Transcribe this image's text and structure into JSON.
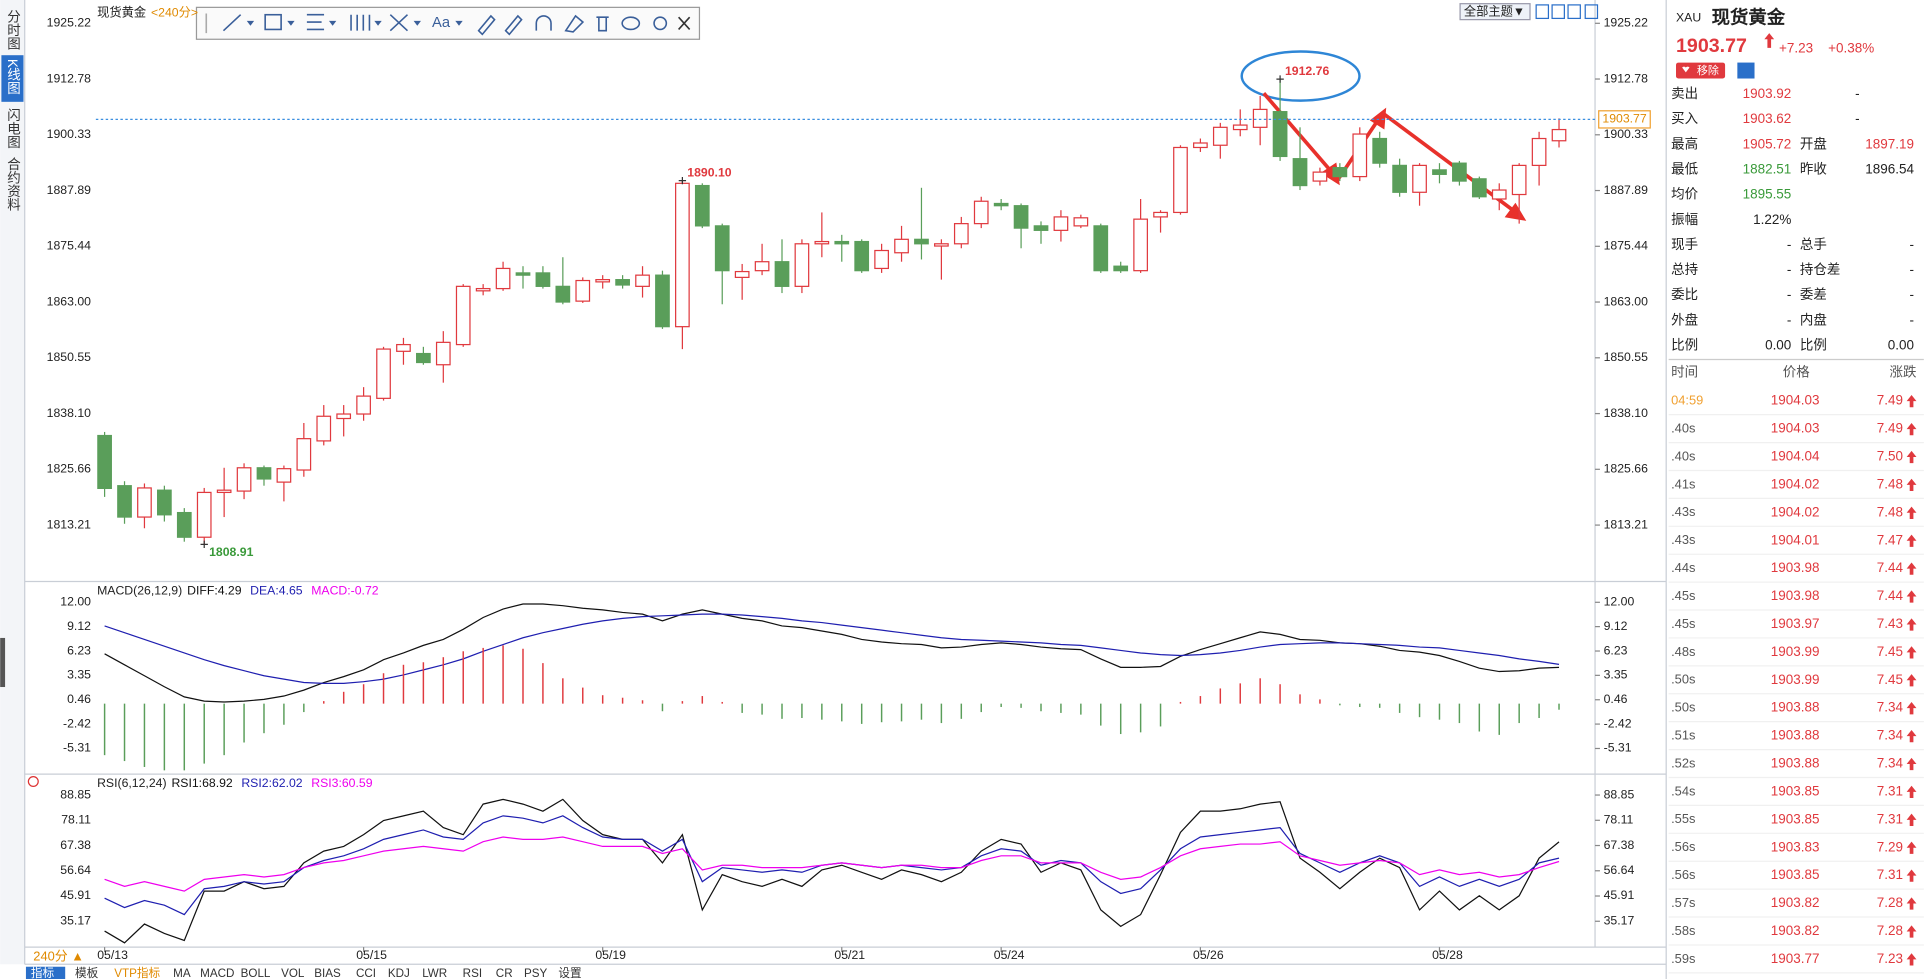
{
  "sidebar": {
    "tabs": [
      "分时图",
      "K线图",
      "闪电图",
      "合约资料"
    ]
  },
  "toolbar": {
    "font_button": "Aa",
    "theme_button": "全部主题▼"
  },
  "chart_data": [
    {
      "type": "candlestick",
      "title": "现货黄金",
      "subtitle": "<240分>",
      "categories": [
        "05/13",
        null,
        null,
        null,
        null,
        null,
        null,
        null,
        null,
        null,
        null,
        null,
        null,
        "05/15",
        null,
        null,
        null,
        null,
        null,
        null,
        null,
        null,
        null,
        null,
        null,
        "05/19",
        null,
        null,
        null,
        null,
        null,
        null,
        null,
        null,
        null,
        null,
        null,
        "05/21",
        null,
        null,
        null,
        null,
        null,
        null,
        null,
        "05/24",
        null,
        null,
        null,
        null,
        null,
        null,
        null,
        null,
        null,
        "05/26",
        null,
        null,
        null,
        null,
        null,
        null,
        null,
        null,
        null,
        null,
        null,
        "05/28",
        null,
        null,
        null,
        null,
        null,
        null
      ],
      "open": [
        1833.2,
        1822.0,
        1815.0,
        1821.0,
        1816.0,
        1810.5,
        1820.5,
        1820.8,
        1826.0,
        1822.8,
        1825.5,
        1832.0,
        1837.0,
        1838.0,
        1841.5,
        1852.0,
        1851.5,
        1849.0,
        1853.5,
        1865.5,
        1866.0,
        1869.5,
        1869.5,
        1866.5,
        1863.2,
        1867.5,
        1868.0,
        1866.5,
        1869.0,
        1857.5,
        1889.0,
        1880.0,
        1868.5,
        1870.0,
        1872.0,
        1866.5,
        1876.0,
        1876.5,
        1876.5,
        1870.5,
        1874.0,
        1877.0,
        1875.5,
        1876.0,
        1880.5,
        1885.0,
        1884.5,
        1880.0,
        1879.0,
        1880.0,
        1880.0,
        1871.0,
        1870.0,
        1882.0,
        1883.0,
        1897.5,
        1898.0,
        1901.5,
        1902.0,
        1905.5,
        1895.0,
        1890.0,
        1893.0,
        1891.0,
        1899.5,
        1893.5,
        1887.5,
        1892.5,
        1894.0,
        1890.5,
        1886.0,
        1887.0,
        1893.5,
        1899.0
      ],
      "high": [
        1834.0,
        1823.0,
        1822.5,
        1822.0,
        1817.0,
        1821.5,
        1826.0,
        1827.0,
        1826.5,
        1826.5,
        1836.0,
        1840.0,
        1840.0,
        1844.0,
        1853.0,
        1855.0,
        1853.0,
        1856.5,
        1867.0,
        1867.0,
        1872.0,
        1871.0,
        1871.0,
        1873.0,
        1868.5,
        1869.0,
        1869.0,
        1871.0,
        1870.0,
        1890.1,
        1889.5,
        1880.5,
        1871.5,
        1876.0,
        1877.0,
        1877.0,
        1883.0,
        1878.0,
        1877.0,
        1876.0,
        1880.0,
        1888.5,
        1877.0,
        1882.0,
        1886.5,
        1886.0,
        1885.0,
        1881.0,
        1883.5,
        1882.5,
        1880.5,
        1872.0,
        1886.0,
        1883.5,
        1898.0,
        1899.5,
        1903.0,
        1906.0,
        1909.0,
        1912.76,
        1902.0,
        1893.0,
        1894.0,
        1902.0,
        1901.0,
        1895.0,
        1894.0,
        1894.0,
        1894.5,
        1891.0,
        1889.5,
        1894.0,
        1901.0,
        1904.0
      ],
      "low": [
        1819.5,
        1813.5,
        1812.5,
        1814.0,
        1809.5,
        1808.91,
        1815.0,
        1819.0,
        1822.0,
        1818.5,
        1824.0,
        1831.0,
        1833.0,
        1836.5,
        1841.0,
        1849.0,
        1849.0,
        1845.0,
        1853.0,
        1864.5,
        1865.5,
        1866.0,
        1866.0,
        1862.5,
        1862.8,
        1866.0,
        1866.0,
        1864.0,
        1857.0,
        1852.5,
        1879.5,
        1862.5,
        1863.5,
        1869.0,
        1865.0,
        1865.0,
        1873.0,
        1872.0,
        1869.5,
        1869.5,
        1872.0,
        1872.5,
        1868.0,
        1875.0,
        1879.5,
        1883.5,
        1875.0,
        1876.0,
        1876.5,
        1879.5,
        1869.5,
        1869.5,
        1869.5,
        1878.5,
        1882.5,
        1896.5,
        1895.0,
        1900.0,
        1898.0,
        1894.5,
        1888.0,
        1889.0,
        1890.0,
        1890.0,
        1893.0,
        1886.5,
        1884.5,
        1889.5,
        1889.0,
        1886.0,
        1883.5,
        1880.5,
        1889.0,
        1897.5
      ],
      "close": [
        1821.4,
        1815.0,
        1821.5,
        1815.5,
        1810.5,
        1820.5,
        1821.0,
        1826.0,
        1823.5,
        1825.8,
        1832.5,
        1837.5,
        1838.0,
        1842.0,
        1852.5,
        1853.5,
        1849.5,
        1854.0,
        1866.5,
        1866.0,
        1870.5,
        1869.0,
        1866.5,
        1863.0,
        1867.8,
        1868.0,
        1866.8,
        1869.0,
        1857.5,
        1889.5,
        1880.0,
        1870.0,
        1869.8,
        1872.0,
        1866.5,
        1876.0,
        1876.5,
        1876.0,
        1870.0,
        1874.5,
        1877.0,
        1876.0,
        1876.0,
        1880.5,
        1885.5,
        1884.5,
        1879.5,
        1879.0,
        1882.0,
        1881.8,
        1870.0,
        1870.0,
        1881.5,
        1883.0,
        1897.5,
        1898.5,
        1902.0,
        1902.5,
        1906.0,
        1895.5,
        1889.0,
        1892.0,
        1891.0,
        1900.5,
        1894.0,
        1887.5,
        1893.5,
        1891.5,
        1890.0,
        1886.5,
        1888.0,
        1893.5,
        1899.5,
        1901.5
      ],
      "up_color": "#e0393e",
      "down_color": "#5a9e5a",
      "ylim": [
        1801.16,
        1928.23
      ],
      "yticks": [
        1813.21,
        1825.66,
        {
          "value": 1838.1,
          "label": "1838.10"
        },
        1850.55,
        {
          "value": 1863,
          "label": "1863.00"
        },
        1875.44,
        1887.89,
        1900.33,
        1912.78,
        1925.22
      ],
      "last": {
        "value": 1903.77,
        "label": "1903.77"
      },
      "labels": [
        {
          "series": "high",
          "index": 59,
          "label": "1912.76",
          "color": "#e0393e"
        },
        {
          "series": "high",
          "index": 29,
          "label": "1890.10",
          "color": "#e0393e"
        },
        {
          "series": "low",
          "index": 5,
          "label": "1808.91",
          "color": "#3a9a3a"
        }
      ]
    },
    {
      "type": "macd",
      "title": "MACD(26,12,9)",
      "ylim": [
        -7.91,
        13.88
      ],
      "yticks": [
        {
          "value": 12,
          "label": "12.00"
        },
        9.12,
        6.23,
        3.35,
        0.46,
        -2.42,
        -5.31
      ],
      "series": [
        {
          "name": "DIFF:4.29",
          "color": "#111111",
          "values": [
            5.9,
            4.6,
            3.3,
            2.0,
            0.8,
            0.3,
            0.2,
            0.3,
            0.5,
            0.9,
            1.6,
            2.5,
            3.2,
            4.0,
            5.2,
            6.0,
            6.9,
            7.6,
            8.8,
            10.2,
            11.2,
            11.8,
            11.8,
            11.6,
            11.3,
            11.1,
            10.8,
            10.6,
            9.8,
            10.6,
            11.1,
            10.6,
            10.1,
            9.8,
            9.2,
            9.0,
            8.6,
            8.2,
            7.6,
            7.3,
            7.1,
            7.0,
            6.6,
            6.7,
            7.0,
            7.2,
            7.0,
            6.7,
            6.5,
            6.4,
            5.3,
            4.3,
            4.3,
            4.4,
            5.6,
            6.4,
            7.1,
            7.8,
            8.5,
            8.2,
            7.6,
            7.5,
            7.2,
            7.1,
            6.8,
            6.3,
            6.1,
            5.7,
            5.0,
            4.2,
            3.8,
            3.9,
            4.2,
            4.29
          ]
        },
        {
          "name": "DEA:4.65",
          "color": "#1f1fb0",
          "values": [
            9.2,
            8.4,
            7.6,
            6.8,
            6.0,
            5.2,
            4.5,
            3.9,
            3.3,
            2.9,
            2.5,
            2.4,
            2.4,
            2.6,
            2.9,
            3.4,
            4.0,
            4.6,
            5.3,
            6.2,
            7.0,
            7.8,
            8.4,
            8.9,
            9.4,
            9.8,
            10.1,
            10.3,
            10.4,
            10.5,
            10.6,
            10.6,
            10.5,
            10.3,
            10.1,
            9.8,
            9.6,
            9.3,
            9.0,
            8.7,
            8.4,
            8.1,
            7.8,
            7.6,
            7.5,
            7.4,
            7.3,
            7.2,
            7.0,
            6.9,
            6.6,
            6.3,
            6.0,
            5.8,
            5.7,
            5.8,
            6.0,
            6.3,
            6.7,
            7.0,
            7.1,
            7.2,
            7.2,
            7.1,
            7.0,
            6.9,
            6.7,
            6.6,
            6.3,
            6.0,
            5.7,
            5.3,
            5.0,
            4.65
          ]
        },
        {
          "name": "MACD:-0.72",
          "color": "#ee00ee",
          "style": "bar",
          "up_color": "#e0393e",
          "down_color": "#5a9e5a",
          "values": [
            -6.1,
            -6.8,
            -7.5,
            -7.9,
            -7.9,
            -7.1,
            -6.1,
            -4.6,
            -3.5,
            -2.5,
            -1.0,
            0.3,
            1.4,
            2.3,
            3.6,
            4.6,
            4.9,
            5.5,
            6.2,
            6.6,
            6.9,
            6.5,
            4.8,
            3.0,
            1.9,
            1.0,
            0.7,
            0.4,
            -0.9,
            0.3,
            0.9,
            0.2,
            -1.1,
            -1.3,
            -1.8,
            -1.7,
            -1.9,
            -2.1,
            -2.4,
            -2.2,
            -2.1,
            -1.9,
            -2.3,
            -1.8,
            -1.0,
            -0.4,
            -0.5,
            -0.9,
            -1.1,
            -1.3,
            -2.6,
            -3.6,
            -3.4,
            -2.7,
            0.2,
            0.9,
            1.8,
            2.4,
            3.0,
            2.3,
            1.1,
            0.5,
            -0.2,
            -0.4,
            -0.5,
            -1.1,
            -1.6,
            -1.9,
            -2.3,
            -3.3,
            -3.7,
            -2.3,
            -1.7,
            -0.72
          ]
        }
      ]
    },
    {
      "type": "line",
      "title": "RSI(6,12,24)",
      "ylim": [
        24.18,
        96.18
      ],
      "yticks": [
        35.17,
        45.91,
        56.64,
        67.38,
        78.11,
        88.85
      ],
      "series": [
        {
          "name": "RSI1:68.92",
          "color": "#111111",
          "values": [
            31,
            26,
            34,
            30,
            27,
            48,
            48,
            52,
            49,
            50,
            60,
            65,
            67,
            72,
            78,
            80,
            82,
            75,
            72,
            85,
            87,
            85,
            82,
            87,
            78,
            72,
            70,
            70,
            60,
            72,
            40,
            55,
            52,
            50,
            53,
            50,
            57,
            59,
            56,
            53,
            57,
            55,
            52,
            56,
            65,
            70,
            68,
            56,
            60,
            57,
            40,
            33,
            38,
            55,
            73,
            82,
            82,
            83,
            85,
            86,
            62,
            56,
            49,
            56,
            62,
            58,
            40,
            48,
            40,
            46,
            40,
            46,
            62,
            68.92
          ]
        },
        {
          "name": "RSI2:62.02",
          "color": "#1f1fb0",
          "values": [
            45,
            41,
            44,
            42,
            38,
            49,
            50,
            52,
            51,
            52,
            58,
            61,
            63,
            66,
            70,
            72,
            74,
            71,
            70,
            77,
            80,
            79,
            77,
            80,
            75,
            71,
            70,
            70,
            65,
            70,
            52,
            58,
            57,
            56,
            57,
            56,
            59,
            60,
            59,
            58,
            59,
            58,
            57,
            58,
            63,
            66,
            65,
            59,
            61,
            60,
            52,
            47,
            49,
            57,
            66,
            71,
            72,
            73,
            74,
            75,
            64,
            60,
            56,
            60,
            63,
            60,
            50,
            54,
            50,
            53,
            50,
            53,
            60,
            62.02
          ]
        },
        {
          "name": "RSI3:60.59",
          "color": "#ee00ee",
          "values": [
            53,
            50,
            52,
            50,
            48,
            53,
            54,
            55,
            54,
            55,
            58,
            60,
            61,
            63,
            65,
            66,
            67,
            66,
            65,
            69,
            71,
            70,
            70,
            71,
            69,
            67,
            67,
            67,
            64,
            66,
            57,
            59,
            59,
            58,
            58,
            58,
            59,
            60,
            59,
            58,
            59,
            59,
            58,
            58,
            61,
            63,
            63,
            60,
            60,
            60,
            56,
            53,
            54,
            58,
            63,
            66,
            67,
            68,
            68,
            69,
            63,
            61,
            59,
            60,
            61,
            60,
            55,
            57,
            55,
            56,
            54,
            55,
            58,
            60.59
          ]
        }
      ]
    }
  ],
  "quote": {
    "symbol": "XAU",
    "name": "现货黄金",
    "price": "1903.77",
    "change": "+7.23",
    "percent": "+0.38%",
    "remove_button": "移除",
    "fields": [
      {
        "label": "卖出",
        "value": "1903.92",
        "color": "#e0393e",
        "extra": "-"
      },
      {
        "label": "买入",
        "value": "1903.62",
        "color": "#e0393e",
        "extra": "-"
      },
      {
        "label": "最高",
        "value": "1905.72",
        "color": "#e0393e",
        "label2": "开盘",
        "value2": "1897.19",
        "color2": "#e0393e"
      },
      {
        "label": "最低",
        "value": "1882.51",
        "color": "#3a9a3a",
        "label2": "昨收",
        "value2": "1896.54",
        "color2": "#222222"
      },
      {
        "label": "均价",
        "value": "1895.55",
        "color": "#3a9a3a"
      },
      {
        "label": "振幅",
        "value": "1.22%",
        "color": "#222222"
      },
      {
        "label": "现手",
        "value": "-",
        "color": "#222222",
        "label2": "总手",
        "value2": "-",
        "color2": "#222222"
      },
      {
        "label": "总持",
        "value": "-",
        "color": "#222222",
        "label2": "持仓差",
        "value2": "-",
        "color2": "#222222"
      },
      {
        "label": "委比",
        "value": "-",
        "color": "#222222",
        "label2": "委差",
        "value2": "-",
        "color2": "#222222"
      },
      {
        "label": "外盘",
        "value": "-",
        "color": "#222222",
        "label2": "内盘",
        "value2": "-",
        "color2": "#222222"
      },
      {
        "label": "比例",
        "value": "0.00",
        "color": "#222222",
        "label2": "比例",
        "value2": "0.00",
        "color2": "#222222"
      }
    ],
    "ticks": {
      "header": [
        "时间",
        "价格",
        "涨跌"
      ],
      "rows": [
        [
          "04:59",
          "1904.03",
          "7.49"
        ],
        [
          ".40s",
          "1904.03",
          "7.49"
        ],
        [
          ".40s",
          "1904.04",
          "7.50"
        ],
        [
          ".41s",
          "1904.02",
          "7.48"
        ],
        [
          ".43s",
          "1904.02",
          "7.48"
        ],
        [
          ".43s",
          "1904.01",
          "7.47"
        ],
        [
          ".44s",
          "1903.98",
          "7.44"
        ],
        [
          ".45s",
          "1903.98",
          "7.44"
        ],
        [
          ".45s",
          "1903.97",
          "7.43"
        ],
        [
          ".48s",
          "1903.99",
          "7.45"
        ],
        [
          ".50s",
          "1903.99",
          "7.45"
        ],
        [
          ".50s",
          "1903.88",
          "7.34"
        ],
        [
          ".51s",
          "1903.88",
          "7.34"
        ],
        [
          ".52s",
          "1903.88",
          "7.34"
        ],
        [
          ".54s",
          "1903.85",
          "7.31"
        ],
        [
          ".55s",
          "1903.85",
          "7.31"
        ],
        [
          ".56s",
          "1903.83",
          "7.29"
        ],
        [
          ".56s",
          "1903.85",
          "7.31"
        ],
        [
          ".57s",
          "1903.82",
          "7.28"
        ],
        [
          ".58s",
          "1903.82",
          "7.28"
        ],
        [
          ".59s",
          "1903.77",
          "7.23"
        ]
      ]
    }
  },
  "bottom": {
    "period": "240分 ▲",
    "tabs": [
      "指标",
      "模板",
      "VTP指标",
      "MA",
      "MACD",
      "BOLL",
      "VOL",
      "BIAS",
      "CCI",
      "KDJ",
      "LWR",
      "RSI",
      "CR",
      "PSY",
      "设置"
    ]
  }
}
